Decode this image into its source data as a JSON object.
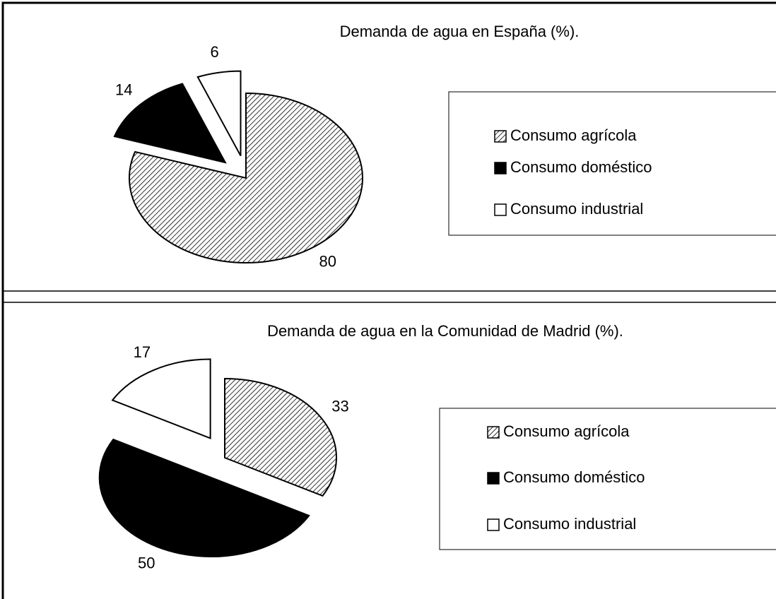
{
  "chart_data": [
    {
      "type": "pie",
      "title": "Demanda de agua  en España (%).",
      "categories": [
        "Consumo agrícola",
        "Consumo doméstico",
        "Consumo industrial"
      ],
      "values": [
        80,
        14,
        6
      ],
      "fills": [
        "hatch",
        "#000000",
        "#ffffff"
      ],
      "exploded": [
        false,
        true,
        true
      ]
    },
    {
      "type": "pie",
      "title": "Demanda de agua en la Comunidad de Madrid  (%).",
      "categories": [
        "Consumo agrícola",
        "Consumo doméstico",
        "Consumo industrial"
      ],
      "values": [
        33,
        50,
        17
      ],
      "fills": [
        "hatch",
        "#000000",
        "#ffffff"
      ],
      "exploded": [
        false,
        true,
        true
      ]
    }
  ]
}
